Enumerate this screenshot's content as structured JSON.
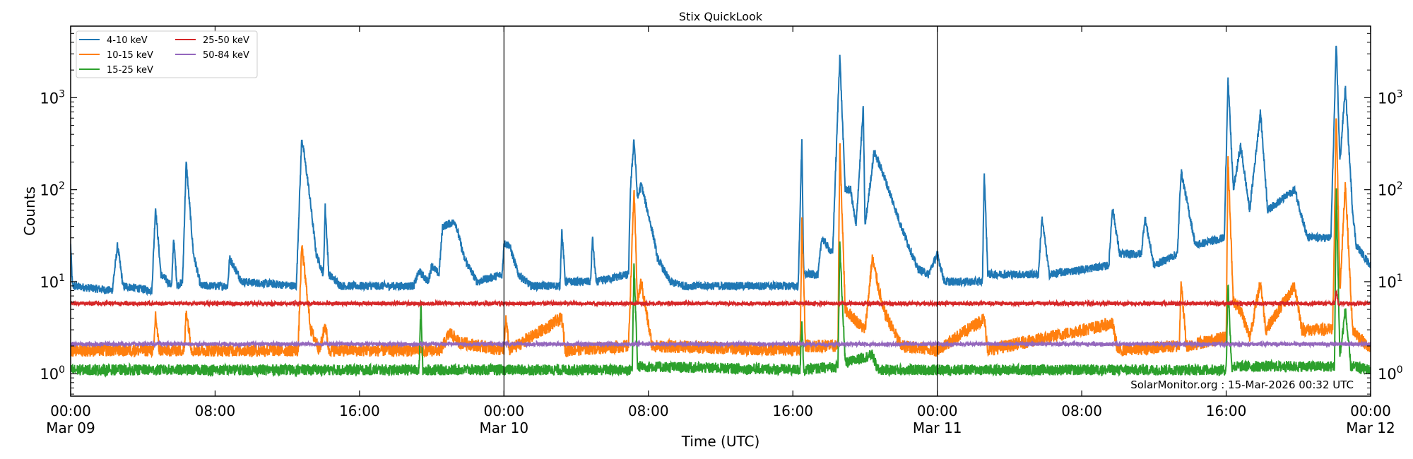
{
  "chart_data": {
    "type": "line",
    "title": "Stix QuickLook",
    "xlabel": "Time (UTC)",
    "ylabel": "Counts",
    "yscale": "log",
    "ylim": [
      0.57,
      6000
    ],
    "xlim_hours_from_start": [
      0,
      72
    ],
    "x_ticks": [
      {
        "h": 0,
        "time": "00:00",
        "date": "Mar 09"
      },
      {
        "h": 8,
        "time": "08:00",
        "date": ""
      },
      {
        "h": 16,
        "time": "16:00",
        "date": ""
      },
      {
        "h": 24,
        "time": "00:00",
        "date": "Mar 10"
      },
      {
        "h": 32,
        "time": "08:00",
        "date": ""
      },
      {
        "h": 40,
        "time": "16:00",
        "date": ""
      },
      {
        "h": 48,
        "time": "00:00",
        "date": "Mar 11"
      },
      {
        "h": 56,
        "time": "08:00",
        "date": ""
      },
      {
        "h": 64,
        "time": "16:00",
        "date": ""
      },
      {
        "h": 72,
        "time": "00:00",
        "date": "Mar 12"
      }
    ],
    "y_ticks": [
      {
        "v": 1,
        "base": "10",
        "exp": "0"
      },
      {
        "v": 10,
        "base": "10",
        "exp": "1"
      },
      {
        "v": 100,
        "base": "10",
        "exp": "2"
      },
      {
        "v": 1000,
        "base": "10",
        "exp": "3"
      }
    ],
    "day_boundaries_h": [
      24,
      48
    ],
    "legend_placement": "top-left",
    "annotation": "SolarMonitor.org : 15-Mar-2026 00:32 UTC",
    "series": [
      {
        "name": "4-10 keV",
        "color": "#1f77b4",
        "points": [
          [
            0,
            25
          ],
          [
            0.1,
            9
          ],
          [
            2.3,
            8
          ],
          [
            2.6,
            25
          ],
          [
            2.9,
            9
          ],
          [
            4.5,
            8
          ],
          [
            4.7,
            65
          ],
          [
            5.0,
            12
          ],
          [
            5.6,
            9
          ],
          [
            5.7,
            30
          ],
          [
            5.9,
            9
          ],
          [
            6.2,
            10
          ],
          [
            6.4,
            200
          ],
          [
            6.8,
            20
          ],
          [
            7.2,
            9
          ],
          [
            8.7,
            9
          ],
          [
            8.8,
            18
          ],
          [
            9.5,
            10
          ],
          [
            12.5,
            9
          ],
          [
            12.8,
            370
          ],
          [
            13.2,
            100
          ],
          [
            13.6,
            20
          ],
          [
            14.0,
            12
          ],
          [
            14.1,
            65
          ],
          [
            14.3,
            12
          ],
          [
            15,
            9
          ],
          [
            19.0,
            9
          ],
          [
            19.3,
            13
          ],
          [
            19.8,
            10
          ],
          [
            20.0,
            15
          ],
          [
            20.4,
            12
          ],
          [
            20.6,
            40
          ],
          [
            21.3,
            45
          ],
          [
            21.8,
            18
          ],
          [
            22.5,
            10
          ],
          [
            23.9,
            12
          ],
          [
            24.0,
            26
          ],
          [
            24.3,
            25
          ],
          [
            24.8,
            12
          ],
          [
            25.5,
            9
          ],
          [
            27.1,
            9
          ],
          [
            27.2,
            37
          ],
          [
            27.4,
            10
          ],
          [
            28.8,
            10
          ],
          [
            28.9,
            30
          ],
          [
            29.1,
            10
          ],
          [
            30.9,
            12
          ],
          [
            31.0,
            97
          ],
          [
            31.2,
            360
          ],
          [
            31.4,
            80
          ],
          [
            31.6,
            115
          ],
          [
            32.3,
            30
          ],
          [
            32.5,
            18
          ],
          [
            33.2,
            10
          ],
          [
            34,
            9
          ],
          [
            40.3,
            9
          ],
          [
            40.5,
            370
          ],
          [
            40.6,
            12
          ],
          [
            41.4,
            12
          ],
          [
            41.6,
            30
          ],
          [
            42.2,
            20
          ],
          [
            42.6,
            2900
          ],
          [
            42.9,
            100
          ],
          [
            43.2,
            100
          ],
          [
            43.5,
            40
          ],
          [
            43.9,
            780
          ],
          [
            44.0,
            40
          ],
          [
            44.5,
            260
          ],
          [
            45,
            150
          ],
          [
            46,
            40
          ],
          [
            46.9,
            14
          ],
          [
            47.5,
            12
          ],
          [
            48,
            20
          ],
          [
            48.4,
            10
          ],
          [
            50.5,
            10
          ],
          [
            50.6,
            160
          ],
          [
            50.8,
            12
          ],
          [
            53.6,
            12
          ],
          [
            53.8,
            50
          ],
          [
            54.2,
            12
          ],
          [
            57.5,
            15
          ],
          [
            57.7,
            65
          ],
          [
            58.1,
            20
          ],
          [
            59.3,
            20
          ],
          [
            59.5,
            50
          ],
          [
            60,
            15
          ],
          [
            61.3,
            20
          ],
          [
            61.5,
            160
          ],
          [
            62.3,
            25
          ],
          [
            63.9,
            30
          ],
          [
            64.1,
            1650
          ],
          [
            64.4,
            100
          ],
          [
            64.8,
            300
          ],
          [
            65.3,
            60
          ],
          [
            65.9,
            700
          ],
          [
            66.3,
            60
          ],
          [
            67.8,
            100
          ],
          [
            68.5,
            30
          ],
          [
            69.8,
            30
          ],
          [
            70.1,
            3900
          ],
          [
            70.3,
            200
          ],
          [
            70.6,
            1300
          ],
          [
            71,
            60
          ],
          [
            71.2,
            25
          ],
          [
            72,
            15
          ]
        ]
      },
      {
        "name": "10-15 keV",
        "color": "#ff7f0e",
        "points": [
          [
            0,
            1.8
          ],
          [
            4.6,
            1.8
          ],
          [
            4.7,
            4.5
          ],
          [
            4.9,
            1.8
          ],
          [
            6.3,
            1.8
          ],
          [
            6.4,
            5
          ],
          [
            6.7,
            1.8
          ],
          [
            12.6,
            1.8
          ],
          [
            12.8,
            25
          ],
          [
            13.3,
            3
          ],
          [
            13.8,
            1.8
          ],
          [
            14.1,
            3.5
          ],
          [
            14.3,
            1.8
          ],
          [
            20.5,
            1.8
          ],
          [
            21,
            2.8
          ],
          [
            21.5,
            2.2
          ],
          [
            24,
            1.8
          ],
          [
            24.1,
            4
          ],
          [
            24.3,
            1.8
          ],
          [
            27.2,
            4
          ],
          [
            27.4,
            1.8
          ],
          [
            30.9,
            2
          ],
          [
            31.2,
            100
          ],
          [
            31.4,
            6
          ],
          [
            31.6,
            10
          ],
          [
            32.2,
            2
          ],
          [
            40.4,
            1.8
          ],
          [
            40.5,
            45
          ],
          [
            40.7,
            2
          ],
          [
            42.5,
            2
          ],
          [
            42.6,
            330
          ],
          [
            42.9,
            5
          ],
          [
            44.0,
            3
          ],
          [
            44.4,
            18
          ],
          [
            45,
            5
          ],
          [
            46,
            2
          ],
          [
            48,
            1.8
          ],
          [
            50.6,
            4
          ],
          [
            50.8,
            1.8
          ],
          [
            57.7,
            3.5
          ],
          [
            58,
            1.8
          ],
          [
            61.4,
            2
          ],
          [
            61.5,
            10
          ],
          [
            61.8,
            2
          ],
          [
            64.0,
            2.5
          ],
          [
            64.1,
            230
          ],
          [
            64.4,
            6
          ],
          [
            64.8,
            5
          ],
          [
            65.3,
            2.5
          ],
          [
            65.9,
            10
          ],
          [
            66.2,
            3
          ],
          [
            67.8,
            9
          ],
          [
            68.2,
            3
          ],
          [
            69.9,
            3
          ],
          [
            70.1,
            680
          ],
          [
            70.3,
            8
          ],
          [
            70.6,
            120
          ],
          [
            71,
            3
          ],
          [
            72,
            1.8
          ]
        ]
      },
      {
        "name": "15-25 keV",
        "color": "#2ca02c",
        "points": [
          [
            0,
            1.1
          ],
          [
            19.3,
            1.1
          ],
          [
            19.4,
            6
          ],
          [
            19.5,
            1.1
          ],
          [
            31.1,
            1.1
          ],
          [
            31.2,
            15
          ],
          [
            31.4,
            1.2
          ],
          [
            40.4,
            1.1
          ],
          [
            40.5,
            4
          ],
          [
            40.6,
            1.1
          ],
          [
            42.5,
            1.2
          ],
          [
            42.6,
            25
          ],
          [
            42.9,
            1.3
          ],
          [
            44.4,
            1.6
          ],
          [
            44.7,
            1.1
          ],
          [
            64.0,
            1.1
          ],
          [
            64.1,
            10
          ],
          [
            64.3,
            1.2
          ],
          [
            70.0,
            1.2
          ],
          [
            70.1,
            100
          ],
          [
            70.3,
            1.5
          ],
          [
            70.6,
            5
          ],
          [
            70.9,
            1.2
          ],
          [
            72,
            1.1
          ]
        ]
      },
      {
        "name": "25-50 keV",
        "color": "#d62728",
        "points": [
          [
            0,
            5.8
          ],
          [
            70.0,
            5.8
          ],
          [
            70.1,
            8
          ],
          [
            70.2,
            5.8
          ],
          [
            72,
            5.8
          ]
        ]
      },
      {
        "name": "50-84 keV",
        "color": "#9467bd",
        "points": [
          [
            0,
            2.1
          ],
          [
            72,
            2.1
          ]
        ]
      }
    ]
  }
}
